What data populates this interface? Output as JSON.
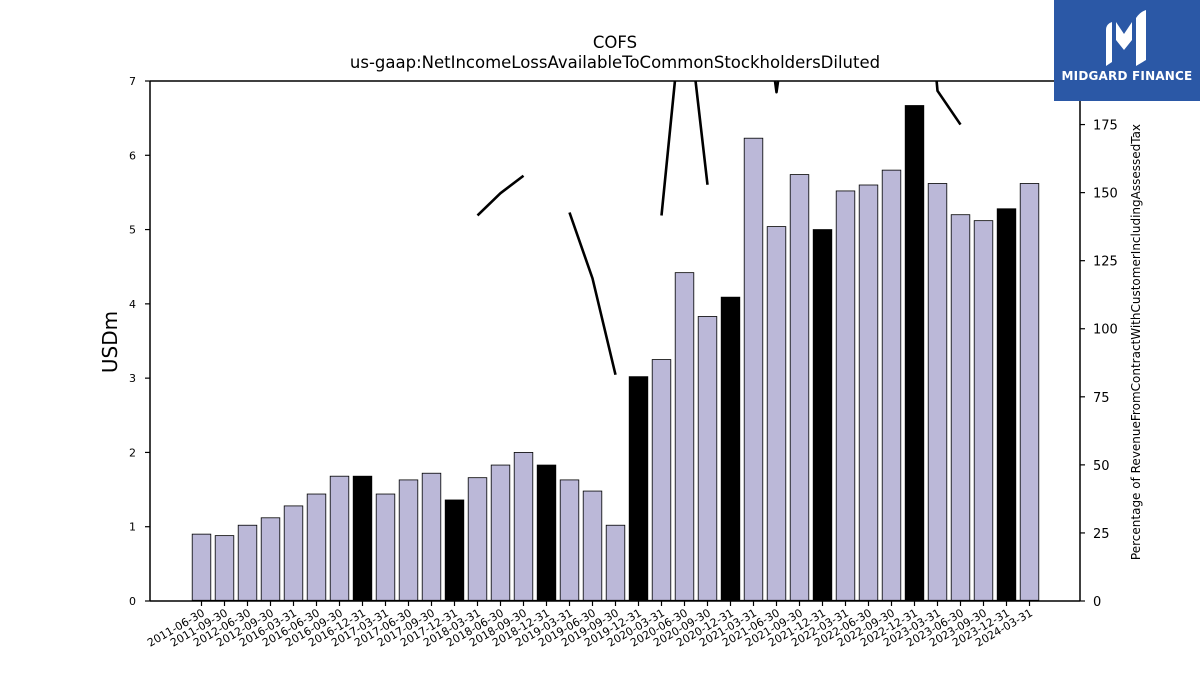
{
  "chart_data": {
    "type": "bar+line",
    "title": "COFS",
    "subtitle": "us-gaap:NetIncomeLossAvailableToCommonStockholdersDiluted",
    "ylabel": "USDm",
    "y2label": "Percentage of RevenueFromContractWithCustomerIncludingAssessedTax",
    "ylim": [
      0,
      7
    ],
    "y2lim": [
      0,
      191
    ],
    "yticks": [
      "0",
      "1",
      "2",
      "3",
      "4",
      "5",
      "6",
      "7"
    ],
    "y2ticks": [
      "0",
      "25",
      "50",
      "75",
      "100",
      "125",
      "150",
      "175"
    ],
    "categories": [
      "2011-06-30",
      "2011-09-30",
      "2012-06-30",
      "2012-09-30",
      "2016-03-31",
      "2016-06-30",
      "2016-09-30",
      "2016-12-31",
      "2017-03-31",
      "2017-06-30",
      "2017-09-30",
      "2017-12-31",
      "2018-03-31",
      "2018-06-30",
      "2018-09-30",
      "2018-12-31",
      "2019-03-31",
      "2019-06-30",
      "2019-09-30",
      "2019-12-31",
      "2020-03-31",
      "2020-06-30",
      "2020-09-30",
      "2020-12-31",
      "2021-03-31",
      "2021-06-30",
      "2021-09-30",
      "2021-12-31",
      "2022-03-31",
      "2022-06-30",
      "2022-09-30",
      "2022-12-31",
      "2023-03-31",
      "2023-06-30",
      "2023-09-30",
      "2023-12-31",
      "2024-03-31"
    ],
    "bar_values": [
      0.9,
      0.88,
      1.02,
      1.12,
      1.28,
      1.44,
      1.68,
      1.68,
      1.44,
      1.63,
      1.72,
      1.36,
      1.66,
      1.83,
      2.0,
      1.83,
      1.63,
      1.48,
      1.02,
      3.02,
      3.25,
      4.42,
      3.83,
      4.09,
      6.23,
      5.04,
      5.74,
      5.0,
      5.52,
      5.6,
      5.8,
      6.67,
      5.62,
      5.2,
      5.12,
      5.28,
      5.62
    ],
    "bar_highlight": [
      false,
      false,
      false,
      false,
      false,
      false,
      false,
      true,
      false,
      false,
      false,
      true,
      false,
      false,
      false,
      true,
      false,
      false,
      false,
      true,
      false,
      false,
      false,
      true,
      false,
      false,
      false,
      true,
      false,
      false,
      false,
      true,
      false,
      false,
      false,
      true,
      false
    ],
    "line_values": [
      null,
      null,
      null,
      null,
      null,
      null,
      null,
      null,
      null,
      null,
      null,
      null,
      141.6,
      149.8,
      156.2,
      null,
      142.7,
      118.5,
      83.1,
      null,
      141.6,
      226.2,
      152.9,
      null,
      250,
      186.9,
      246.3,
      null,
      218.7,
      246.3,
      null,
      280,
      187.4,
      175.0,
      null,
      null,
      206.5
    ],
    "colors": {
      "bar": "#bbb8d8",
      "bar_highlight": "#000000",
      "line": "#000000"
    },
    "grid": false
  },
  "logo": {
    "name": "midgard-finance-logo",
    "text": "MIDGARD FINANCE"
  }
}
